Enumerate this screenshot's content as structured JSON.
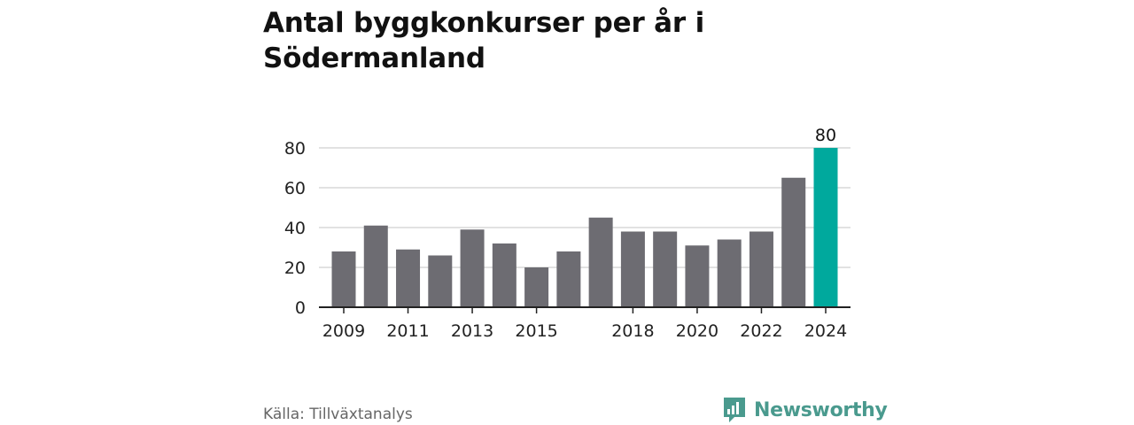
{
  "title": "Antal byggkonkurser per år i Södermanland",
  "source": "Källa: Tillväxtanalys",
  "logo": {
    "text": "Newsworthy",
    "icon": "newsworthy-logo-icon",
    "color": "#4a9a8e"
  },
  "chart_data": {
    "type": "bar",
    "categories": [
      "2009",
      "2010",
      "2011",
      "2012",
      "2013",
      "2014",
      "2015",
      "2016",
      "2017",
      "2018",
      "2019",
      "2020",
      "2021",
      "2022",
      "2023",
      "2024"
    ],
    "values": [
      28,
      41,
      29,
      26,
      39,
      32,
      20,
      28,
      45,
      38,
      38,
      31,
      34,
      38,
      65,
      80
    ],
    "xtick_labels": [
      "2009",
      "2011",
      "2013",
      "2015",
      "2018",
      "2020",
      "2022",
      "2024"
    ],
    "yticks": [
      0,
      20,
      40,
      60,
      80
    ],
    "ylim": [
      0,
      80
    ],
    "grid": true,
    "bar_color": "#6d6c72",
    "highlight_color": "#00a99d",
    "highlight_index": 15,
    "highlight_label": "80"
  }
}
